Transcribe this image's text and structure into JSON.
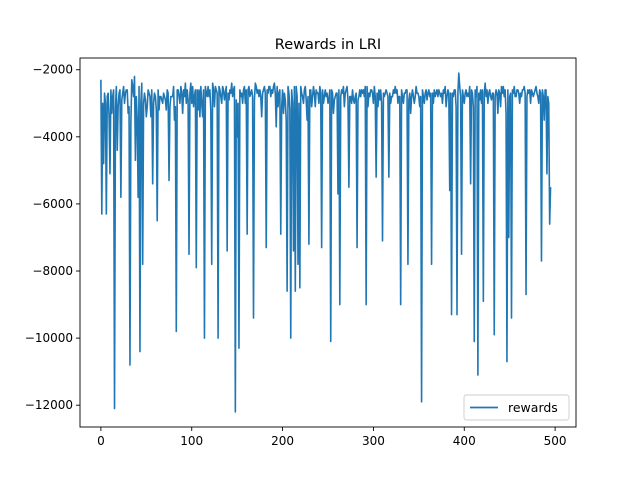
{
  "chart_data": {
    "type": "line",
    "title": "Rewards in LRI",
    "xlabel": "",
    "ylabel": "",
    "xlim": [
      -23,
      523
    ],
    "ylim": [
      -12650,
      -1650
    ],
    "xticks": [
      0,
      100,
      200,
      300,
      400,
      500
    ],
    "yticks": [
      -12000,
      -10000,
      -8000,
      -6000,
      -4000,
      -2000
    ],
    "xtick_labels": [
      "0",
      "100",
      "200",
      "300",
      "400",
      "500"
    ],
    "ytick_labels": [
      "−12000",
      "−10000",
      "−8000",
      "−6000",
      "−4000",
      "−2000"
    ],
    "grid": false,
    "legend": {
      "position": "lower-right",
      "entries": [
        "rewards"
      ]
    },
    "series": [
      {
        "name": "rewards",
        "color": "#1f77b4",
        "x_start": 0,
        "x_step": 1,
        "values": [
          -2300,
          -6300,
          -3000,
          -4800,
          -2700,
          -3000,
          -6300,
          -2800,
          -2700,
          -3400,
          -5100,
          -2600,
          -3300,
          -2800,
          -2600,
          -12100,
          -3200,
          -2500,
          -4400,
          -3100,
          -2700,
          -2600,
          -5800,
          -2900,
          -2700,
          -2500,
          -3000,
          -2700,
          -2600,
          -2600,
          -3300,
          -3100,
          -10800,
          -3600,
          -2300,
          -2500,
          -2800,
          -2200,
          -4700,
          -2800,
          -3500,
          -5800,
          -2500,
          -10400,
          -3000,
          -2400,
          -7800,
          -3000,
          -2700,
          -2900,
          -3400,
          -3100,
          -2600,
          -2700,
          -2800,
          -3400,
          -2600,
          -5400,
          -3000,
          -2700,
          -2800,
          -3200,
          -6500,
          -2600,
          -3200,
          -2800,
          -2800,
          -2900,
          -3000,
          -2700,
          -2800,
          -2900,
          -3200,
          -2600,
          -2700,
          -5300,
          -3100,
          -2800,
          -2800,
          -2800,
          -2500,
          -3500,
          -3100,
          -9800,
          -2600,
          -2600,
          -2800,
          -3000,
          -2500,
          -2700,
          -3300,
          -2600,
          -2800,
          -2400,
          -3000,
          -2600,
          -2900,
          -7500,
          -2700,
          -2400,
          -3000,
          -2500,
          -3100,
          -2800,
          -2600,
          -7900,
          -2600,
          -3200,
          -2600,
          -3400,
          -2500,
          -3000,
          -3400,
          -2600,
          -10000,
          -2500,
          -2700,
          -2800,
          -2500,
          -2800,
          -2600,
          -3200,
          -7800,
          -2400,
          -2600,
          -3100,
          -2500,
          -2600,
          -2700,
          -10000,
          -2500,
          -2600,
          -2800,
          -3000,
          -2500,
          -2600,
          -2900,
          -2700,
          -2500,
          -7400,
          -2700,
          -2900,
          -2600,
          -2700,
          -2400,
          -2800,
          -2600,
          -2500,
          -12200,
          -2900,
          -4000,
          -3000,
          -10300,
          -2600,
          -2800,
          -2700,
          -3000,
          -2600,
          -2500,
          -3000,
          -2600,
          -6900,
          -2600,
          -2500,
          -2800,
          -2700,
          -2600,
          -2800,
          -9400,
          -2900,
          -2400,
          -2500,
          -2700,
          -2600,
          -2800,
          -2600,
          -2800,
          -3400,
          -2700,
          -2600,
          -2500,
          -2700,
          -7300,
          -2600,
          -2700,
          -2500,
          -2500,
          -2800,
          -2600,
          -2700,
          -2500,
          -2400,
          -2700,
          -3700,
          -2500,
          -3100,
          -2700,
          -2600,
          -6900,
          -3100,
          -2600,
          -3300,
          -2700,
          -2900,
          -3500,
          -8600,
          -2500,
          -2700,
          -3200,
          -10000,
          -2600,
          -3000,
          -7400,
          -2500,
          -8600,
          -2500,
          -2800,
          -7800,
          -3000,
          -8500,
          -2500,
          -2700,
          -2800,
          -3000,
          -2600,
          -2500,
          -2900,
          -3500,
          -2800,
          -7200,
          -2600,
          -2600,
          -3100,
          -2800,
          -2500,
          -2700,
          -3100,
          -2600,
          -2700,
          -2700,
          -3000,
          -2500,
          -2700,
          -7300,
          -2600,
          -3000,
          -2800,
          -2600,
          -2800,
          -2700,
          -3000,
          -2900,
          -2600,
          -10100,
          -2600,
          -2700,
          -3300,
          -2900,
          -2800,
          -2700,
          -2700,
          -5700,
          -2600,
          -9000,
          -2800,
          -2600,
          -2700,
          -2500,
          -3100,
          -2700,
          -2600,
          -2500,
          -2900,
          -5500,
          -2800,
          -2800,
          -3000,
          -2600,
          -2900,
          -3000,
          -2800,
          -2700,
          -7300,
          -2900,
          -2800,
          -2600,
          -2800,
          -2600,
          -2700,
          -2600,
          -2800,
          -2500,
          -9000,
          -2500,
          -3100,
          -2700,
          -2800,
          -2600,
          -2600,
          -2700,
          -3000,
          -2500,
          -2800,
          -5200,
          -2700,
          -3100,
          -2600,
          -2900,
          -2600,
          -3000,
          -7100,
          -2700,
          -2800,
          -2700,
          -2600,
          -2700,
          -2800,
          -5200,
          -2700,
          -3000,
          -2800,
          -2800,
          -2600,
          -2700,
          -2500,
          -2700,
          -2600,
          -3000,
          -2800,
          -2800,
          -9000,
          -2600,
          -2800,
          -3000,
          -2700,
          -2700,
          -2600,
          -2600,
          -7800,
          -2900,
          -2700,
          -3300,
          -2800,
          -2600,
          -2800,
          -3000,
          -2800,
          -2500,
          -2700,
          -2700,
          -2800,
          -3100,
          -2800,
          -11900,
          -2600,
          -2800,
          -3000,
          -2700,
          -2600,
          -2900,
          -2700,
          -2600,
          -2800,
          -2700,
          -7800,
          -2700,
          -3000,
          -2600,
          -2800,
          -2700,
          -2600,
          -2800,
          -2600,
          -2700,
          -2800,
          -2700,
          -3000,
          -2600,
          -2700,
          -2500,
          -3100,
          -2800,
          -2600,
          -2700,
          -5600,
          -2700,
          -9300,
          -2700,
          -2800,
          -2600,
          -2600,
          -3100,
          -9300,
          -2700,
          -2100,
          -2500,
          -2800,
          -7500,
          -2600,
          -2800,
          -3000,
          -2700,
          -2600,
          -2800,
          -2700,
          -2800,
          -2500,
          -5400,
          -2600,
          -2700,
          -3100,
          -10100,
          -2600,
          -2800,
          -2500,
          -11100,
          -2700,
          -2900,
          -2600,
          -3000,
          -2600,
          -8900,
          -2700,
          -2400,
          -2800,
          -2600,
          -3000,
          -2700,
          -2600,
          -2800,
          -2900,
          -2700,
          -2700,
          -9900,
          -2800,
          -2600,
          -2700,
          -3300,
          -2600,
          -2700,
          -3100,
          -2500,
          -2700,
          -2500,
          -2800,
          -2600,
          -3300,
          -10700,
          -2600,
          -7000,
          -2800,
          -2700,
          -9400,
          -2600,
          -2700,
          -2500,
          -2800,
          -2800,
          -2600,
          -2600,
          -2700,
          -3000,
          -2700,
          -2800,
          -2600,
          -2600,
          -2500,
          -2700,
          -8700,
          -2800,
          -2600,
          -2700,
          -2600,
          -3000,
          -2600,
          -2700,
          -2800,
          -2700,
          -2600,
          -2500,
          -2700,
          -2800,
          -3000,
          -2600,
          -2700,
          -7700,
          -2600,
          -2800,
          -3500,
          -2600,
          -2600,
          -5100,
          -2800,
          -3000,
          -6600,
          -5500
        ]
      }
    ]
  }
}
